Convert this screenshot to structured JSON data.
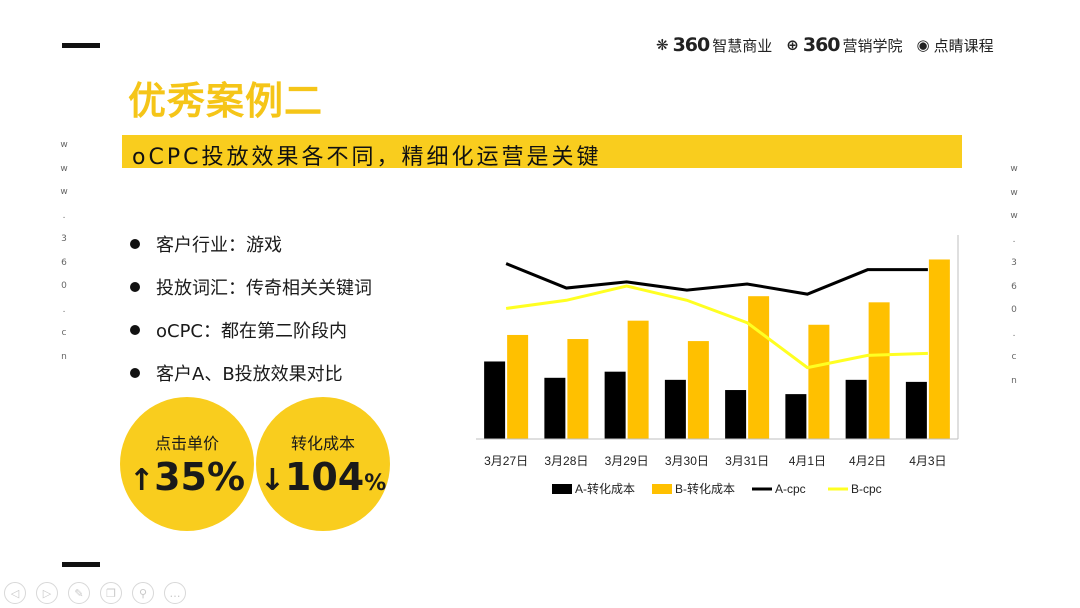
{
  "title": "优秀案例二",
  "subtitle": "oCPC投放效果各不同，精细化运营是关键",
  "side_text": [
    "w",
    "w",
    "w",
    ".",
    "3",
    "6",
    "0",
    ".",
    "c",
    "n"
  ],
  "logos": [
    {
      "mark": "❋",
      "big": "360",
      "name": "智慧商业"
    },
    {
      "mark": "⊕",
      "big": "360",
      "name": "营销学院"
    },
    {
      "mark": "◉",
      "big": "",
      "name": "点睛课程"
    }
  ],
  "bullets": [
    "客户行业：游戏",
    "投放词汇：传奇相关关键词",
    "oCPC：都在第二阶段内",
    "客户A、B投放效果对比"
  ],
  "stats": [
    {
      "label": "点击单价",
      "arrow": "↑",
      "value": "35%",
      "suffix": ""
    },
    {
      "label": "转化成本",
      "arrow": "↓",
      "value": "104",
      "suffix": "%"
    }
  ],
  "toolbar_icons": [
    "prev-icon",
    "next-icon",
    "pen-icon",
    "copy-icon",
    "zoom-icon",
    "more-icon"
  ],
  "toolbar_glyphs": [
    "◁",
    "▷",
    "✎",
    "❐",
    "⚲",
    "…"
  ],
  "chart_data": {
    "type": "bar",
    "categories": [
      "3月27日",
      "3月28日",
      "3月29日",
      "3月30日",
      "3月31日",
      "4月1日",
      "4月2日",
      "4月3日"
    ],
    "series": [
      {
        "name": "A-转化成本",
        "kind": "bar",
        "color": "#000000",
        "values": [
          38,
          30,
          33,
          29,
          24,
          22,
          29,
          28
        ]
      },
      {
        "name": "B-转化成本",
        "kind": "bar",
        "color": "#FFC000",
        "values": [
          51,
          49,
          58,
          48,
          70,
          56,
          67,
          88
        ]
      },
      {
        "name": "A-cpc",
        "kind": "line",
        "color": "#000000",
        "values": [
          86,
          74,
          77,
          73,
          76,
          71,
          83,
          83
        ]
      },
      {
        "name": "B-cpc",
        "kind": "line",
        "color": "#FFFF22",
        "values": [
          64,
          68,
          75,
          68,
          57,
          35,
          41,
          42
        ]
      }
    ],
    "ylim": [
      0,
      100
    ],
    "grid": false,
    "legend": "bottom"
  }
}
